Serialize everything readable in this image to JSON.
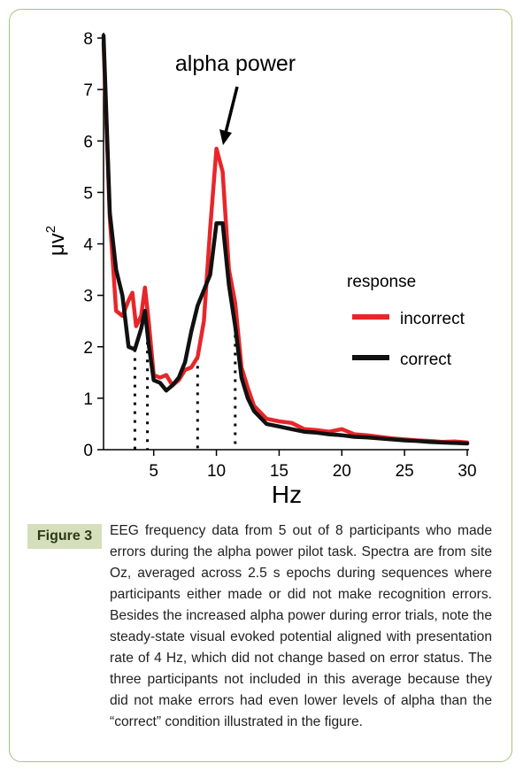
{
  "chart_data": {
    "type": "line",
    "xlabel": "Hz",
    "ylabel": "μv",
    "ylabel_superscript": "2",
    "xlim": [
      1,
      30
    ],
    "ylim": [
      0,
      8
    ],
    "x_ticks": [
      5,
      10,
      15,
      20,
      25,
      30
    ],
    "y_ticks": [
      0,
      1,
      2,
      3,
      4,
      5,
      6,
      7,
      8
    ],
    "grid": false,
    "legend": {
      "title": "response",
      "placement": "right"
    },
    "annotation": {
      "text": "alpha power",
      "points_to": [
        10,
        5.85
      ]
    },
    "reference_lines_x": [
      3.5,
      4.5,
      8.5,
      11.5
    ],
    "series": [
      {
        "name": "incorrect",
        "color": "#e8262a",
        "points": [
          [
            1,
            7.9
          ],
          [
            1.5,
            4.5
          ],
          [
            2,
            2.7
          ],
          [
            2.5,
            2.6
          ],
          [
            3,
            2.9
          ],
          [
            3.3,
            3.05
          ],
          [
            3.6,
            2.4
          ],
          [
            4,
            2.6
          ],
          [
            4.3,
            3.15
          ],
          [
            4.6,
            2.5
          ],
          [
            5,
            1.45
          ],
          [
            5.5,
            1.4
          ],
          [
            6,
            1.45
          ],
          [
            6.5,
            1.25
          ],
          [
            7,
            1.35
          ],
          [
            7.5,
            1.55
          ],
          [
            8,
            1.6
          ],
          [
            8.5,
            1.8
          ],
          [
            9,
            2.5
          ],
          [
            9.5,
            4.3
          ],
          [
            10,
            5.85
          ],
          [
            10.5,
            5.4
          ],
          [
            11,
            3.5
          ],
          [
            11.5,
            2.85
          ],
          [
            12,
            1.6
          ],
          [
            12.5,
            1.2
          ],
          [
            13,
            0.85
          ],
          [
            14,
            0.6
          ],
          [
            15,
            0.55
          ],
          [
            16,
            0.52
          ],
          [
            17,
            0.4
          ],
          [
            18,
            0.38
          ],
          [
            19,
            0.35
          ],
          [
            20,
            0.4
          ],
          [
            21,
            0.3
          ],
          [
            22,
            0.28
          ],
          [
            23,
            0.25
          ],
          [
            24,
            0.22
          ],
          [
            25,
            0.2
          ],
          [
            26,
            0.18
          ],
          [
            27,
            0.17
          ],
          [
            28,
            0.15
          ],
          [
            29,
            0.16
          ],
          [
            30,
            0.14
          ]
        ]
      },
      {
        "name": "correct",
        "color": "#111111",
        "points": [
          [
            1,
            8.05
          ],
          [
            1.5,
            4.6
          ],
          [
            2,
            3.5
          ],
          [
            2.5,
            3.0
          ],
          [
            3,
            2.0
          ],
          [
            3.5,
            1.95
          ],
          [
            4,
            2.35
          ],
          [
            4.3,
            2.7
          ],
          [
            4.6,
            2.05
          ],
          [
            5,
            1.35
          ],
          [
            5.5,
            1.3
          ],
          [
            6,
            1.15
          ],
          [
            6.5,
            1.25
          ],
          [
            7,
            1.4
          ],
          [
            7.5,
            1.7
          ],
          [
            8,
            2.3
          ],
          [
            8.5,
            2.8
          ],
          [
            9,
            3.1
          ],
          [
            9.5,
            3.4
          ],
          [
            10,
            4.4
          ],
          [
            10.5,
            4.4
          ],
          [
            11,
            3.2
          ],
          [
            11.5,
            2.4
          ],
          [
            12,
            1.4
          ],
          [
            12.5,
            1.0
          ],
          [
            13,
            0.75
          ],
          [
            14,
            0.5
          ],
          [
            15,
            0.45
          ],
          [
            16,
            0.4
          ],
          [
            17,
            0.35
          ],
          [
            18,
            0.33
          ],
          [
            19,
            0.3
          ],
          [
            20,
            0.28
          ],
          [
            21,
            0.25
          ],
          [
            22,
            0.24
          ],
          [
            23,
            0.22
          ],
          [
            24,
            0.2
          ],
          [
            25,
            0.18
          ],
          [
            26,
            0.17
          ],
          [
            27,
            0.15
          ],
          [
            28,
            0.14
          ],
          [
            29,
            0.13
          ],
          [
            30,
            0.12
          ]
        ]
      }
    ]
  },
  "caption": {
    "label": "Figure 3",
    "text": "EEG frequency data from 5 out of 8 participants who made errors during the alpha power pilot task. Spectra are from site Oz, averaged across 2.5 s epochs during sequences where participants either made or did not make recognition errors. Besides the increased alpha power during error trials, note the steady-state visual evoked potential aligned with presentation rate of 4 Hz, which did not change based on error status. The three participants not included in this average because they did not make errors had even lower levels of alpha than the “correct” condition illustrated in the figure."
  }
}
